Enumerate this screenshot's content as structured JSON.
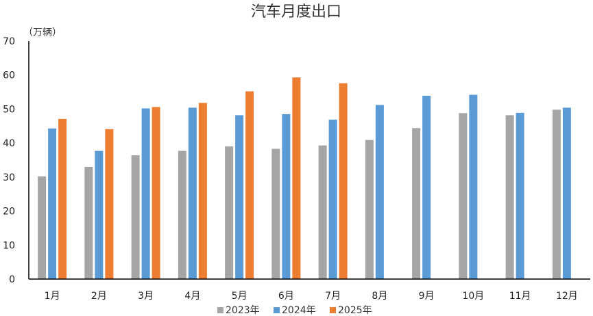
{
  "chart_data": {
    "type": "bar",
    "title": "汽车月度出口",
    "unit_label": "（万辆）",
    "categories": [
      "1月",
      "2月",
      "3月",
      "4月",
      "5月",
      "6月",
      "7月",
      "8月",
      "9月",
      "10月",
      "11月",
      "12月"
    ],
    "series": [
      {
        "name": "2023年",
        "color": "#a5a5a5",
        "values": [
          30.2,
          33.0,
          36.4,
          37.7,
          39.0,
          38.3,
          39.3,
          40.9,
          44.4,
          48.8,
          48.2,
          49.8
        ]
      },
      {
        "name": "2024年",
        "color": "#5b9bd5",
        "values": [
          44.3,
          37.7,
          50.2,
          50.4,
          48.2,
          48.5,
          46.9,
          51.2,
          53.9,
          54.2,
          48.9,
          50.4
        ]
      },
      {
        "name": "2025年",
        "color": "#ed7d31",
        "values": [
          47.1,
          44.1,
          50.6,
          51.8,
          55.2,
          59.3,
          57.6,
          null,
          null,
          null,
          null,
          null
        ]
      }
    ],
    "ylim": [
      0,
      70
    ],
    "yticks": [
      0,
      10,
      20,
      30,
      40,
      50,
      60,
      70
    ],
    "grid": false,
    "legend": "bottom"
  }
}
